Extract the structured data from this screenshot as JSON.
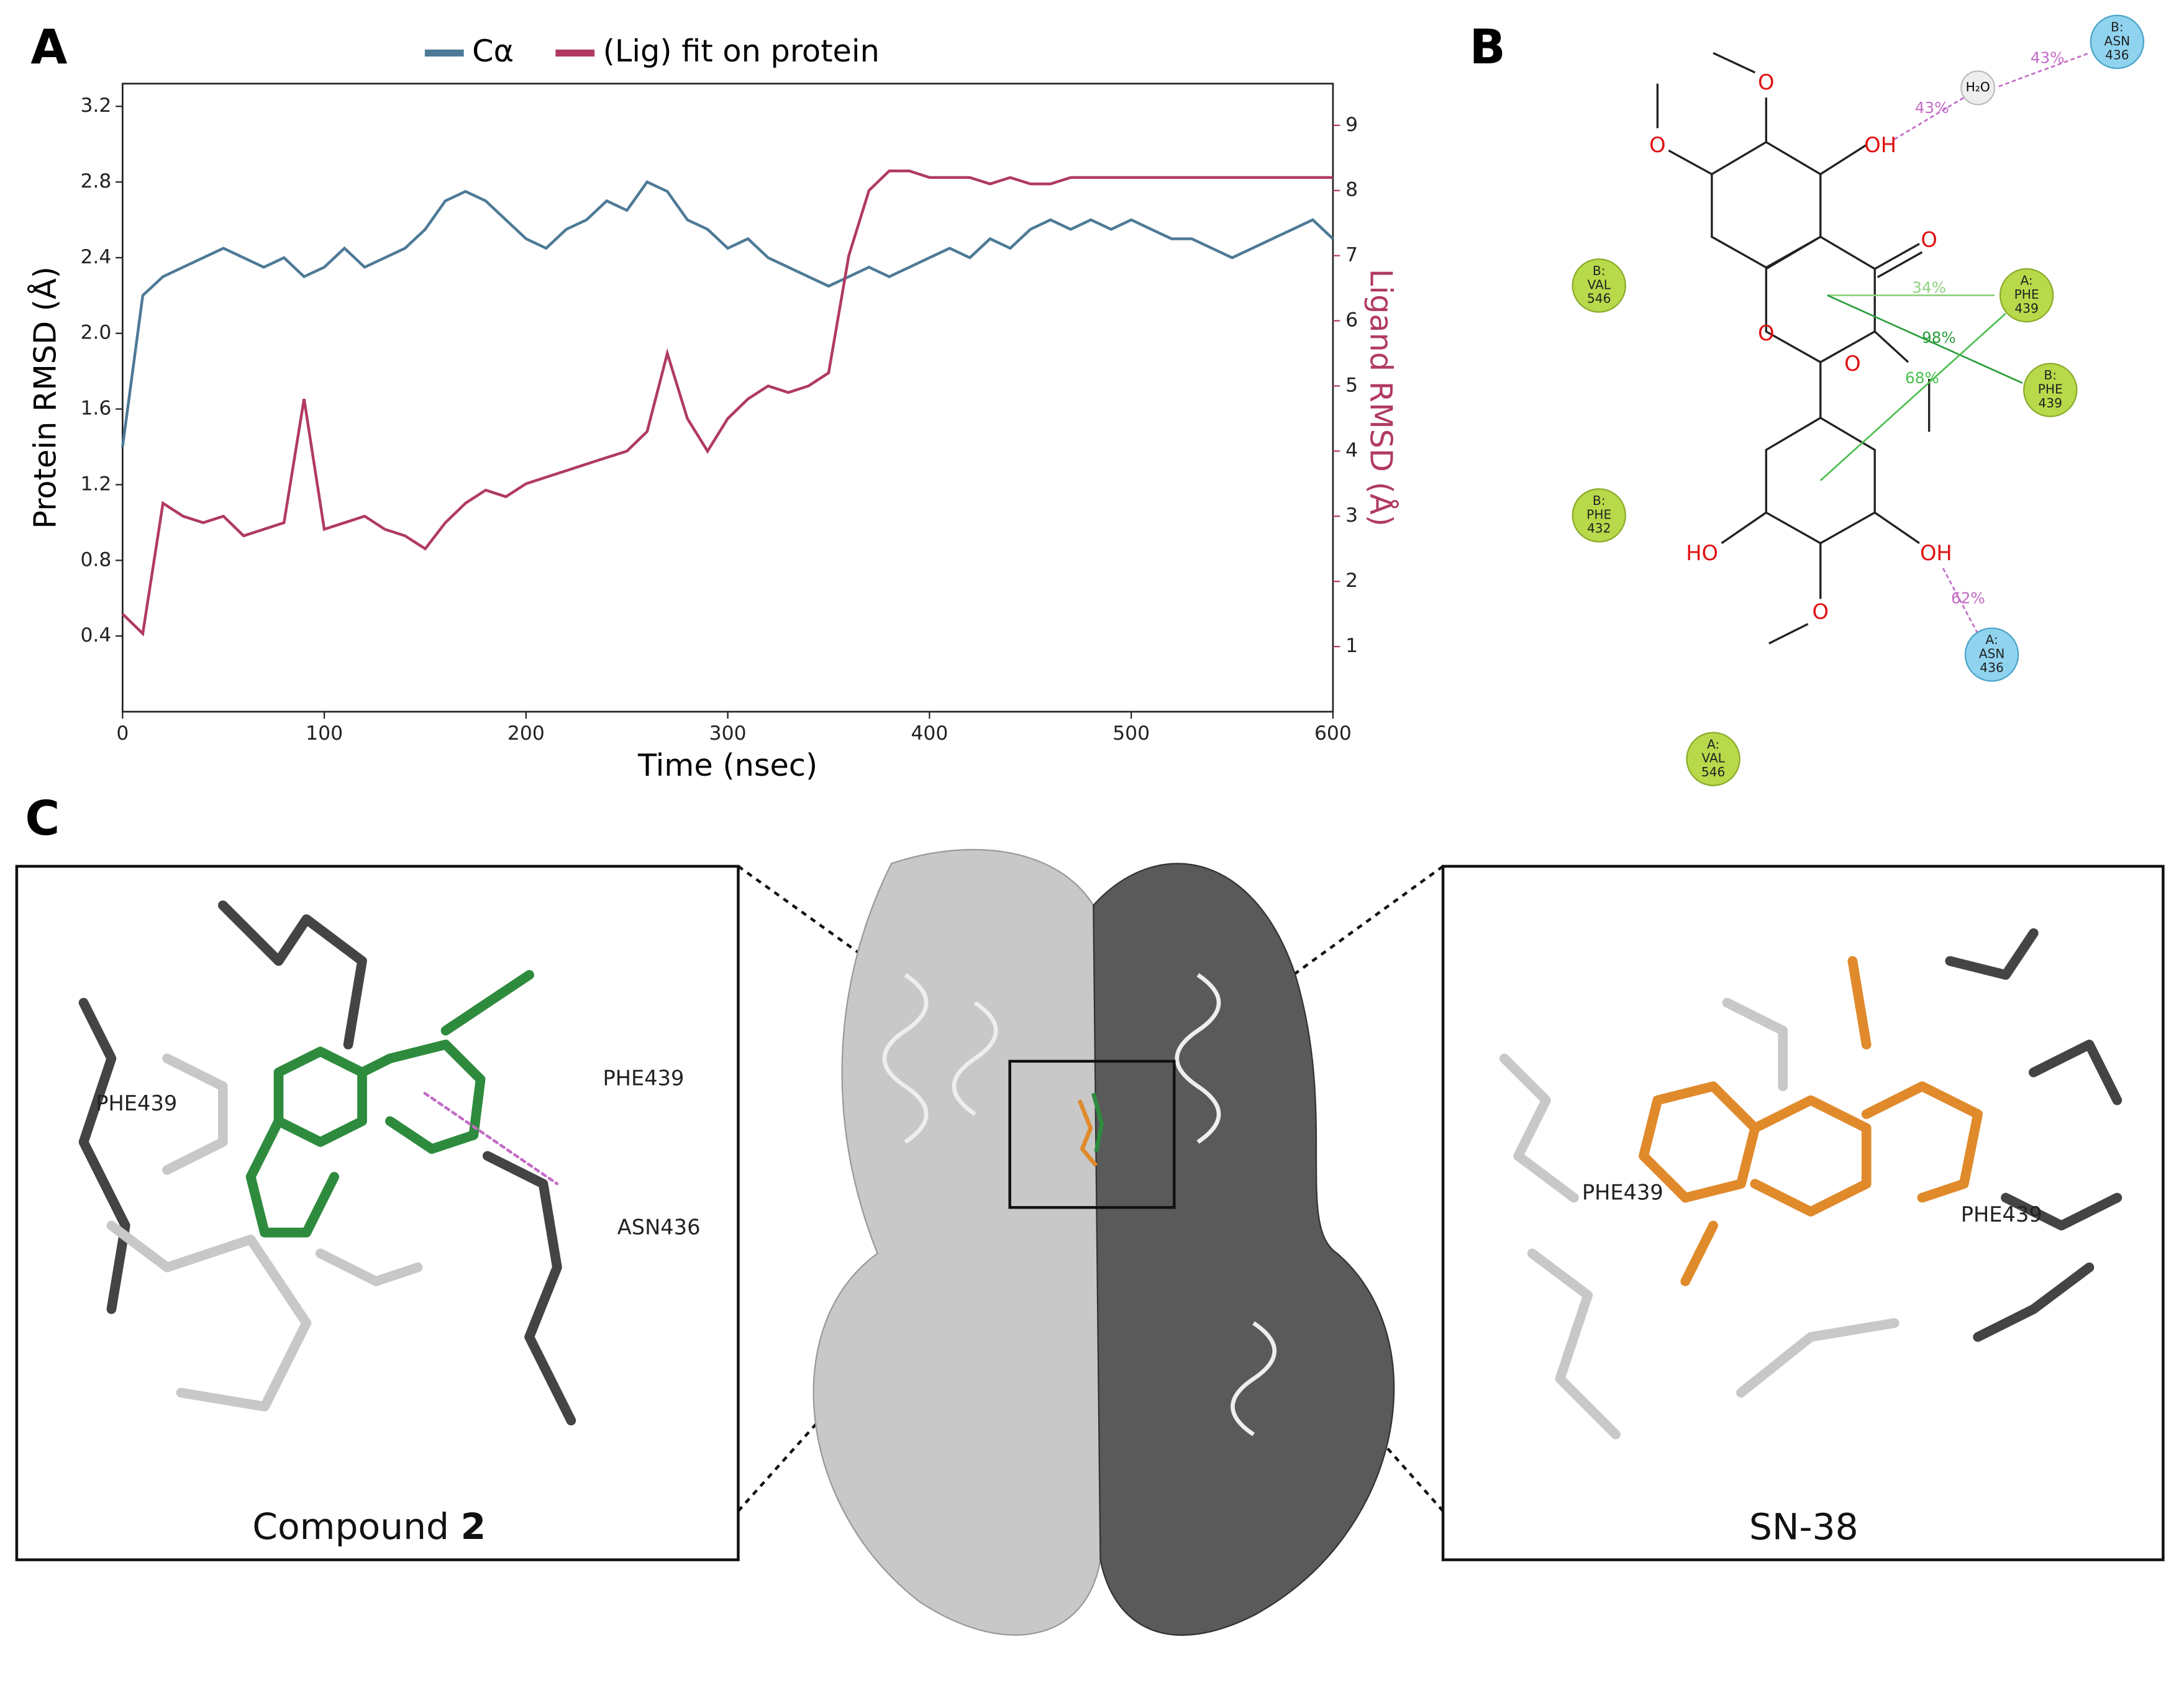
{
  "chart_data": {
    "type": "line",
    "x": [
      0,
      10,
      20,
      30,
      40,
      50,
      60,
      70,
      80,
      90,
      100,
      110,
      120,
      130,
      140,
      150,
      160,
      170,
      180,
      190,
      200,
      210,
      220,
      230,
      240,
      250,
      260,
      270,
      280,
      290,
      300,
      310,
      320,
      330,
      340,
      350,
      360,
      370,
      380,
      390,
      400,
      410,
      420,
      430,
      440,
      450,
      460,
      470,
      480,
      490,
      500,
      510,
      520,
      530,
      540,
      550,
      560,
      570,
      580,
      590,
      600
    ],
    "series": [
      {
        "name": "Cα",
        "color": "#4d7a96",
        "values": [
          1.4,
          2.2,
          2.3,
          2.35,
          2.4,
          2.45,
          2.4,
          2.35,
          2.4,
          2.3,
          2.35,
          2.45,
          2.35,
          2.4,
          2.45,
          2.55,
          2.7,
          2.75,
          2.7,
          2.6,
          2.5,
          2.45,
          2.55,
          2.6,
          2.7,
          2.65,
          2.8,
          2.75,
          2.6,
          2.55,
          2.45,
          2.5,
          2.4,
          2.35,
          2.3,
          2.25,
          2.3,
          2.35,
          2.3,
          2.35,
          2.4,
          2.45,
          2.4,
          2.5,
          2.45,
          2.55,
          2.6,
          2.55,
          2.6,
          2.55,
          2.6,
          2.55,
          2.5,
          2.5,
          2.45,
          2.4,
          2.45,
          2.5,
          2.55,
          2.6,
          2.5
        ]
      },
      {
        "name": "(Lig) fit on protein",
        "color": "#b03a62",
        "axis": "y2",
        "values": [
          1.5,
          1.2,
          3.2,
          3.0,
          2.9,
          3.0,
          2.7,
          2.8,
          2.9,
          4.8,
          2.8,
          2.9,
          3.0,
          2.8,
          2.7,
          2.5,
          2.9,
          3.2,
          3.4,
          3.3,
          3.5,
          3.6,
          3.7,
          3.8,
          3.9,
          4.0,
          4.3,
          5.5,
          4.5,
          4.0,
          4.5,
          4.8,
          5.0,
          4.9,
          5.0,
          5.2,
          7.0,
          8.0,
          8.3,
          8.3,
          8.2,
          8.2,
          8.2,
          8.1,
          8.2,
          8.1,
          8.1,
          8.2,
          8.2,
          8.2,
          8.2,
          8.2,
          8.2,
          8.2,
          8.2,
          8.2,
          8.2,
          8.2,
          8.2,
          8.2,
          8.2
        ]
      }
    ],
    "x_label": "Time (nsec)",
    "y_label": "Protein RMSD (Å)",
    "y2_label": "Ligand RMSD (Å)",
    "xlim": [
      0,
      600
    ],
    "xticks": [
      0,
      100,
      200,
      300,
      400,
      500,
      600
    ],
    "ylim": [
      0,
      3.32
    ],
    "yticks": [
      0.4,
      0.8,
      1.2,
      1.6,
      {
        "value": 2,
        "label": "2.0"
      },
      2.4,
      2.8,
      3.2
    ],
    "y2lim": [
      0,
      9.64
    ],
    "y2ticks": [
      1,
      2,
      3,
      4,
      5,
      6,
      7,
      8,
      9
    ],
    "legend": "top"
  },
  "panel_labels": [
    "A",
    "B",
    "C"
  ],
  "interaction_diagram": {
    "residues": [
      {
        "chain": "B:",
        "name": "ASN",
        "number": "436",
        "kind": "polar"
      },
      {
        "chain": "B:",
        "name": "VAL",
        "number": "546",
        "kind": "hydrophobic"
      },
      {
        "chain": "A:",
        "name": "PHE",
        "number": "439",
        "kind": "hydrophobic"
      },
      {
        "chain": "B:",
        "name": "PHE",
        "number": "439",
        "kind": "hydrophobic"
      },
      {
        "chain": "B:",
        "name": "PHE",
        "number": "432",
        "kind": "hydrophobic"
      },
      {
        "chain": "A:",
        "name": "ASN",
        "number": "436",
        "kind": "polar"
      },
      {
        "chain": "A:",
        "name": "VAL",
        "number": "546",
        "kind": "hydrophobic"
      }
    ],
    "water": "H₂O",
    "percentages": [
      "43%",
      "43%",
      "34%",
      "98%",
      "68%",
      "62%"
    ],
    "atoms": [
      "O",
      "O",
      "OH",
      "O",
      "O",
      "O",
      "HO",
      "OH",
      "O"
    ]
  },
  "left_view": {
    "residue_labels": [
      "PHE439",
      "PHE439",
      "ASN436"
    ],
    "caption": "Compound ",
    "caption_bold": "2"
  },
  "right_view": {
    "residue_labels": [
      "PHE439",
      "PHE439"
    ],
    "caption": "SN-38"
  }
}
